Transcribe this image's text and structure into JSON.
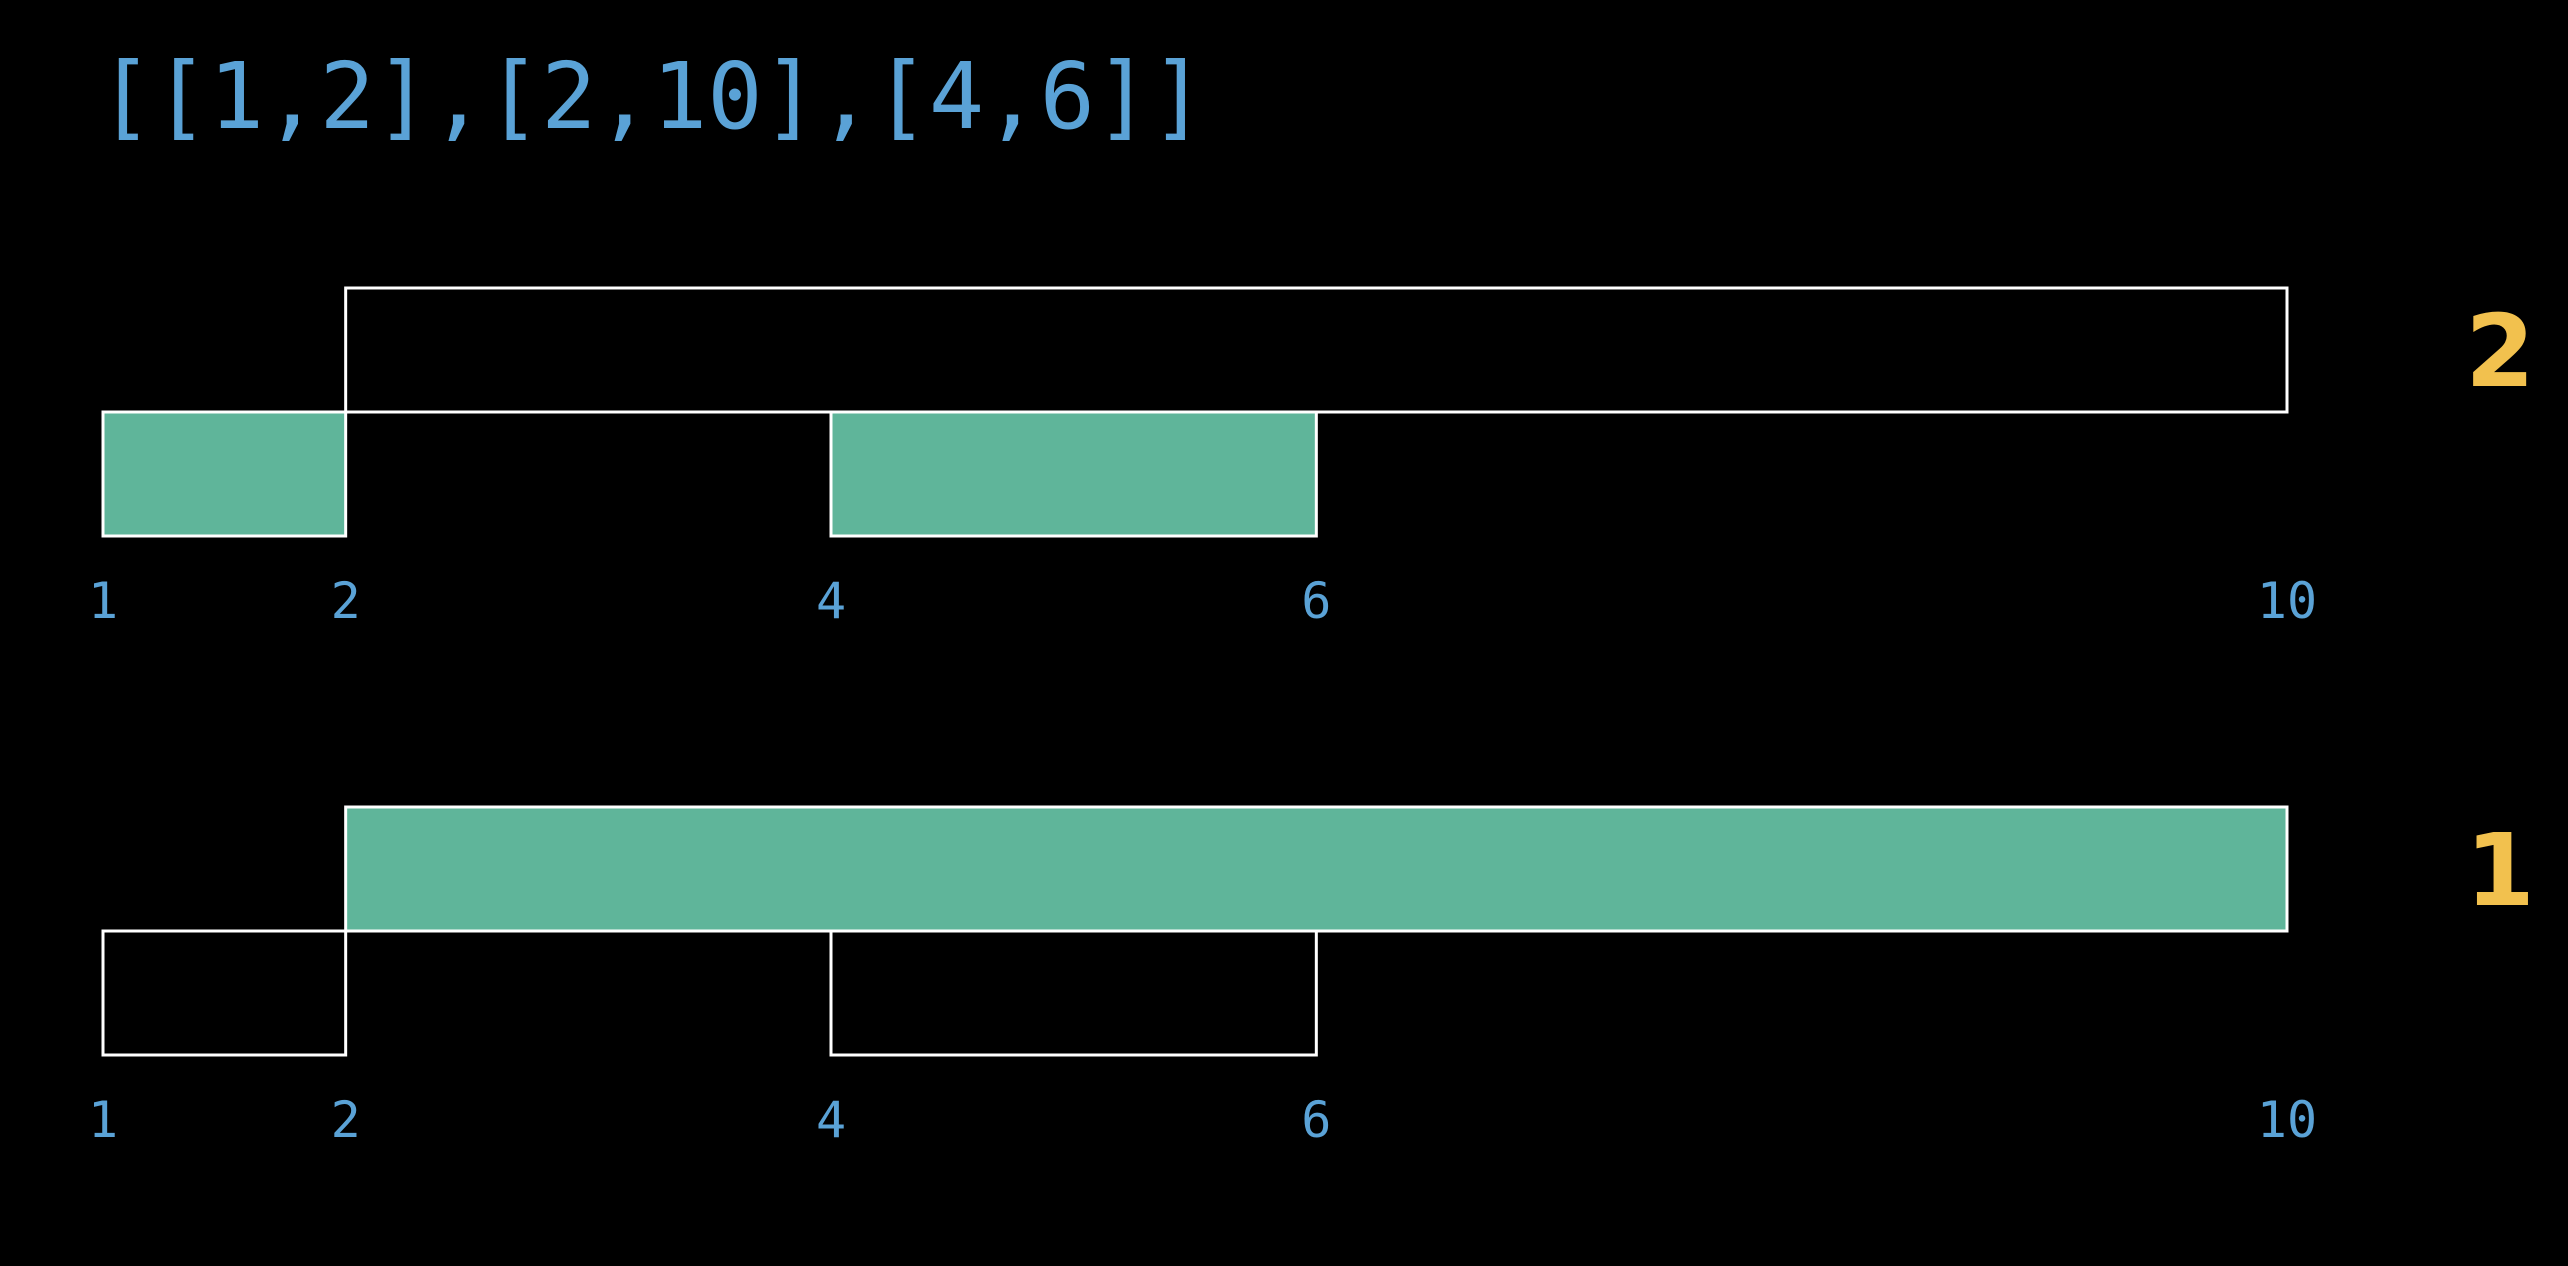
{
  "title": "[[1,2],[2,10],[4,6]]",
  "colors": {
    "background": "#000000",
    "text_blue": "#5aa2d6",
    "count_yellow": "#f2c14e",
    "fill_green": "#5fb59a",
    "outline": "#ffffff"
  },
  "chart_data": {
    "type": "interval-diagram",
    "intervals": [
      [
        1,
        2
      ],
      [
        2,
        10
      ],
      [
        4,
        6
      ]
    ],
    "panels": [
      {
        "count": "2",
        "ticks": [
          "1",
          "2",
          "4",
          "6",
          "10"
        ],
        "rows": [
          {
            "intervals": [
              [
                2,
                10
              ]
            ],
            "filled": [
              false
            ]
          },
          {
            "intervals": [
              [
                1,
                2
              ],
              [
                4,
                6
              ]
            ],
            "filled": [
              true,
              true
            ]
          }
        ]
      },
      {
        "count": "1",
        "ticks": [
          "1",
          "2",
          "4",
          "6",
          "10"
        ],
        "rows": [
          {
            "intervals": [
              [
                2,
                10
              ]
            ],
            "filled": [
              true
            ]
          },
          {
            "intervals": [
              [
                1,
                2
              ],
              [
                4,
                6
              ]
            ],
            "filled": [
              false,
              false
            ]
          }
        ]
      }
    ]
  }
}
